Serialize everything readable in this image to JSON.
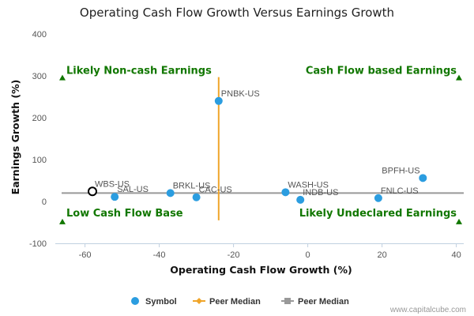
{
  "chart_data": {
    "type": "scatter",
    "title": "Operating Cash Flow Growth Versus Earnings Growth",
    "xlabel": "Operating Cash Flow Growth (%)",
    "ylabel": "Earnings Growth (%)",
    "xlim": [
      -68,
      42
    ],
    "ylim": [
      -100,
      400
    ],
    "xticks": [
      -60,
      -40,
      -20,
      0,
      20,
      40
    ],
    "yticks": [
      -100,
      0,
      100,
      200,
      300,
      400
    ],
    "grid": false,
    "points": [
      {
        "label": "PNBK-US",
        "x": -24,
        "y": 240,
        "highlight": false
      },
      {
        "label": "BPFH-US",
        "x": 31,
        "y": 56,
        "highlight": false
      },
      {
        "label": "WBS-US",
        "x": -58,
        "y": 24,
        "highlight": true
      },
      {
        "label": "SAL-US",
        "x": -52,
        "y": 11,
        "highlight": false
      },
      {
        "label": "BRKL-US",
        "x": -37,
        "y": 20,
        "highlight": false
      },
      {
        "label": "CAC-US",
        "x": -30,
        "y": 10,
        "highlight": false
      },
      {
        "label": "WASH-US",
        "x": -6,
        "y": 22,
        "highlight": false
      },
      {
        "label": "INDB-US",
        "x": -2,
        "y": 4,
        "highlight": false
      },
      {
        "label": "FNLC-US",
        "x": 19,
        "y": 8,
        "highlight": false
      }
    ],
    "peer_median": {
      "x": -24,
      "y": 20
    },
    "quadrant_labels": {
      "top_left": "Likely Non-cash Earnings",
      "top_right": "Cash Flow based Earnings",
      "bottom_left": "Low Cash Flow Base",
      "bottom_right": "Likely Undeclared Earnings"
    },
    "legend": [
      "Symbol",
      "Peer Median",
      "Peer Median"
    ],
    "legend_position": "bottom-center",
    "colors": {
      "point": "#2b9de0",
      "vertical_median": "#f0a52a",
      "horizontal_median": "#999999",
      "quadrant_text": "#117700",
      "highlight_stroke": "#000000"
    }
  },
  "credit": "www.capitalcube.com"
}
